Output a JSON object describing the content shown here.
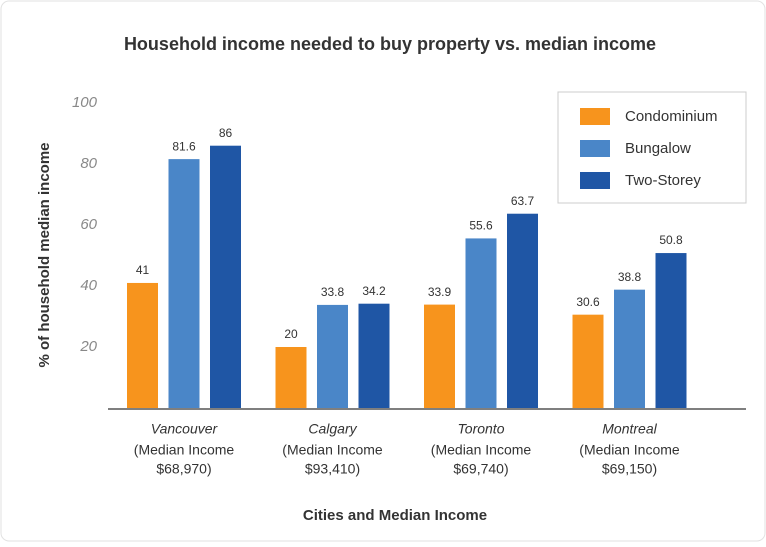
{
  "chart_data": {
    "type": "bar",
    "title": "Household income needed to buy property vs. median income",
    "x_label": "Cities and Median Income",
    "y_label": "% of household median income",
    "categories": [
      "Vancouver",
      "Calgary",
      "Toronto",
      "Montreal"
    ],
    "category_sublabels": [
      [
        "(Median Income",
        "$68,970)"
      ],
      [
        "(Median Income",
        "$93,410)"
      ],
      [
        "(Median Income",
        "$69,740)"
      ],
      [
        "(Median Income",
        "$69,150)"
      ]
    ],
    "series": [
      {
        "name": "Condominium",
        "color": "#f7941d",
        "values": [
          41,
          20,
          33.9,
          30.6
        ]
      },
      {
        "name": "Bungalow",
        "color": "#4a86c8",
        "values": [
          81.6,
          33.8,
          55.6,
          38.8
        ]
      },
      {
        "name": "Two-Storey",
        "color": "#1f56a5",
        "values": [
          86,
          34.2,
          63.7,
          50.8
        ]
      }
    ],
    "ylim": [
      0,
      100
    ],
    "yticks": [
      20,
      40,
      60,
      80,
      100
    ],
    "grid": false,
    "legend": "upper right"
  }
}
